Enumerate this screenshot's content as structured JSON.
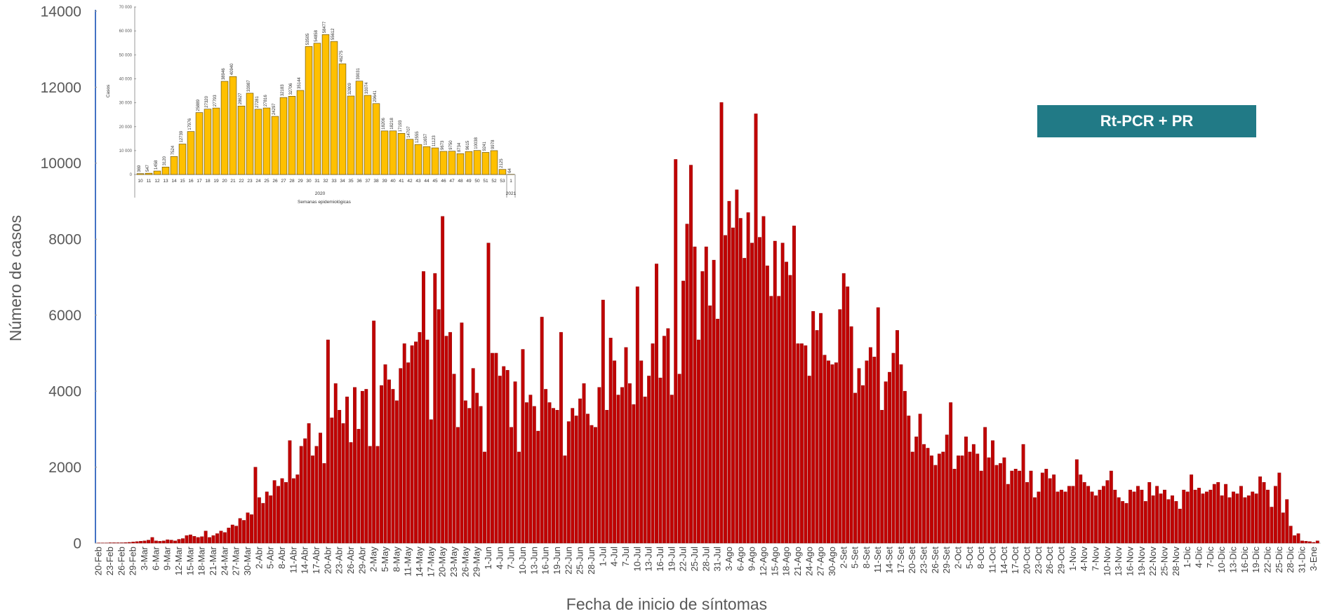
{
  "chart_data": [
    {
      "type": "bar",
      "x_label": "Fecha de inicio de síntomas",
      "y_label": "Número de casos",
      "ylim": [
        0,
        14000
      ],
      "yticks": [
        0,
        2000,
        4000,
        6000,
        8000,
        10000,
        12000,
        14000
      ],
      "grid": false,
      "legend": "top-right",
      "categories": [
        "20-Feb",
        null,
        null,
        "23-Feb",
        null,
        null,
        "26-Feb",
        null,
        null,
        "29-Feb",
        null,
        null,
        "3-Mar",
        null,
        null,
        "6-Mar",
        null,
        null,
        "9-Mar",
        null,
        null,
        "12-Mar",
        null,
        null,
        "15-Mar",
        null,
        null,
        "18-Mar",
        null,
        null,
        "21-Mar",
        null,
        null,
        "24-Mar",
        null,
        null,
        "27-Mar",
        null,
        null,
        "30-Mar",
        null,
        null,
        "2-Abr",
        null,
        null,
        "5-Abr",
        null,
        null,
        "8-Abr",
        null,
        null,
        "11-Abr",
        null,
        null,
        "14-Abr",
        null,
        null,
        "17-Abr",
        null,
        null,
        "20-Abr",
        null,
        null,
        "23-Abr",
        null,
        null,
        "26-Abr",
        null,
        null,
        "29-Abr",
        null,
        null,
        "2-May",
        null,
        null,
        "5-May",
        null,
        null,
        "8-May",
        null,
        null,
        "11-May",
        null,
        null,
        "14-May",
        null,
        null,
        "17-May",
        null,
        null,
        "20-May",
        null,
        null,
        "23-May",
        null,
        null,
        "26-May",
        null,
        null,
        "29-May",
        null,
        null,
        "1-Jun",
        null,
        null,
        "4-Jun",
        null,
        null,
        "7-Jun",
        null,
        null,
        "10-Jun",
        null,
        null,
        "13-Jun",
        null,
        null,
        "16-Jun",
        null,
        null,
        "19-Jun",
        null,
        null,
        "22-Jun",
        null,
        null,
        "25-Jun",
        null,
        null,
        "28-Jun",
        null,
        null,
        "1-Jul",
        null,
        null,
        "4-Jul",
        null,
        null,
        "7-Jul",
        null,
        null,
        "10-Jul",
        null,
        null,
        "13-Jul",
        null,
        null,
        "16-Jul",
        null,
        null,
        "19-Jul",
        null,
        null,
        "22-Jul",
        null,
        null,
        "25-Jul",
        null,
        null,
        "28-Jul",
        null,
        null,
        "31-Jul",
        null,
        null,
        "3-Ago",
        null,
        null,
        "6-Ago",
        null,
        null,
        "9-Ago",
        null,
        null,
        "12-Ago",
        null,
        null,
        "15-Ago",
        null,
        null,
        "18-Ago",
        null,
        null,
        "21-Ago",
        null,
        null,
        "24-Ago",
        null,
        null,
        "27-Ago",
        null,
        null,
        "30-Ago",
        null,
        null,
        "2-Set",
        null,
        null,
        "5-Set",
        null,
        null,
        "8-Set",
        null,
        null,
        "11-Set",
        null,
        null,
        "14-Set",
        null,
        null,
        "17-Set",
        null,
        null,
        "20-Set",
        null,
        null,
        "23-Set",
        null,
        null,
        "26-Set",
        null,
        null,
        "29-Set",
        null,
        null,
        "2-Oct",
        null,
        null,
        "5-Oct",
        null,
        null,
        "8-Oct",
        null,
        null,
        "11-Oct",
        null,
        null,
        "14-Oct",
        null,
        null,
        "17-Oct",
        null,
        null,
        "20-Oct",
        null,
        null,
        "23-Oct",
        null,
        null,
        "26-Oct",
        null,
        null,
        "29-Oct",
        null,
        null,
        "1-Nov",
        null,
        null,
        "4-Nov",
        null,
        null,
        "7-Nov",
        null,
        null,
        "10-Nov",
        null,
        null,
        "13-Nov",
        null,
        null,
        "16-Nov",
        null,
        null,
        "19-Nov",
        null,
        null,
        "22-Nov",
        null,
        null,
        "25-Nov",
        null,
        null,
        "28-Nov",
        null,
        null,
        "1-Dic",
        null,
        null,
        "4-Dic",
        null,
        null,
        "7-Dic",
        null,
        null,
        "10-Dic",
        null,
        null,
        "13-Dic",
        null,
        null,
        "16-Dic",
        null,
        null,
        "19-Dic",
        null,
        null,
        "22-Dic",
        null,
        null,
        "25-Dic",
        null,
        null,
        "28-Dic",
        null,
        null,
        "31-Dic",
        null,
        null,
        "3-Ene",
        null
      ],
      "series": [
        {
          "name": "Rt-PCR + PR",
          "color": "#c00000",
          "values": [
            5,
            5,
            5,
            10,
            10,
            10,
            10,
            15,
            20,
            30,
            40,
            50,
            60,
            80,
            150,
            60,
            50,
            60,
            90,
            80,
            60,
            100,
            120,
            200,
            220,
            180,
            150,
            170,
            320,
            150,
            200,
            250,
            320,
            280,
            400,
            480,
            450,
            650,
            600,
            800,
            750,
            2000,
            1200,
            1050,
            1350,
            1250,
            1650,
            1500,
            1700,
            1600,
            2700,
            1700,
            1800,
            2550,
            2750,
            3150,
            2300,
            2550,
            2900,
            2100,
            5350,
            3300,
            4200,
            3500,
            3150,
            3850,
            2650,
            4100,
            3000,
            4000,
            4050,
            2550,
            5850,
            2550,
            4150,
            4700,
            4300,
            4050,
            3750,
            4600,
            5250,
            4750,
            5200,
            5300,
            5550,
            7150,
            5350,
            3250,
            7100,
            6150,
            8600,
            5450,
            5550,
            4450,
            3050,
            5800,
            3750,
            3550,
            4600,
            3950,
            3600,
            2400,
            7900,
            5000,
            5000,
            4400,
            4650,
            4550,
            3050,
            4250,
            2400,
            5100,
            3700,
            3900,
            3600,
            2950,
            5950,
            4050,
            3700,
            3550,
            3500,
            5550,
            2300,
            3200,
            3550,
            3350,
            3800,
            4200,
            3400,
            3100,
            3050,
            4100,
            6400,
            3500,
            5400,
            4800,
            3900,
            4100,
            5150,
            4200,
            3650,
            6750,
            4800,
            3850,
            4400,
            5250,
            7350,
            4350,
            5450,
            5650,
            3900,
            10100,
            4450,
            6900,
            8400,
            9950,
            7800,
            5350,
            7150,
            7800,
            6250,
            7450,
            5900,
            11600,
            8100,
            9000,
            8300,
            9300,
            8550,
            7500,
            8700,
            7900,
            11300,
            8050,
            8600,
            7300,
            6500,
            7950,
            6500,
            7900,
            7400,
            7050,
            8350,
            5250,
            5250,
            5200,
            4400,
            6100,
            5600,
            6050,
            4950,
            4800,
            4700,
            4750,
            6150,
            7100,
            6750,
            5700,
            3950,
            4600,
            4150,
            4800,
            5150,
            4900,
            6200,
            3500,
            4250,
            4500,
            5000,
            5600,
            4700,
            4000,
            3350,
            2400,
            2800,
            3400,
            2600,
            2500,
            2300,
            2050,
            2350,
            2400,
            2850,
            3700,
            1950,
            2300,
            2300,
            2800,
            2400,
            2600,
            2350,
            1900,
            3050,
            2250,
            2700,
            2050,
            2100,
            2250,
            1550,
            1900,
            1950,
            1900,
            2600,
            1600,
            1900,
            1200,
            1350,
            1850,
            1950,
            1700,
            1800,
            1350,
            1400,
            1350,
            1500,
            1500,
            2200,
            1800,
            1600,
            1500,
            1350,
            1250,
            1400,
            1500,
            1650,
            1900,
            1400,
            1200,
            1100,
            1050,
            1400,
            1350,
            1500,
            1400,
            1100,
            1600,
            1250,
            1500,
            1300,
            1400,
            1150,
            1250,
            1100,
            900,
            1400,
            1350,
            1800,
            1400,
            1450,
            1300,
            1350,
            1400,
            1550,
            1600,
            1250,
            1550,
            1200,
            1350,
            1300,
            1500,
            1200,
            1250,
            1350,
            1300,
            1750,
            1600,
            1400,
            950,
            1500,
            1850,
            800,
            1150,
            450,
            200,
            250,
            60,
            50,
            40,
            20,
            60
          ]
        }
      ]
    },
    {
      "type": "bar",
      "x_label": "Semanas epidemiológicas",
      "y_label": "Casos",
      "year_labels": [
        "2020",
        "2021"
      ],
      "ylim": [
        0,
        70000
      ],
      "yticks": [
        0,
        {
          "value": 10000,
          "label": "10 000"
        },
        {
          "value": 20000,
          "label": "20 000"
        },
        {
          "value": 30000,
          "label": "30 000"
        },
        {
          "value": 40000,
          "label": "40 000"
        },
        {
          "value": 50000,
          "label": "50 000"
        },
        {
          "value": 60000,
          "label": "60 000"
        },
        {
          "value": 70000,
          "label": "70 000"
        }
      ],
      "categories": [
        "10",
        "11",
        "12",
        "13",
        "14",
        "15",
        "16",
        "17",
        "18",
        "19",
        "20",
        "21",
        "22",
        "23",
        "24",
        "25",
        "26",
        "27",
        "28",
        "29",
        "30",
        "31",
        "32",
        "33",
        "34",
        "35",
        "36",
        "37",
        "38",
        "39",
        "40",
        "41",
        "42",
        "43",
        "44",
        "45",
        "46",
        "47",
        "48",
        "49",
        "50",
        "51",
        "52",
        "53",
        "1"
      ],
      "color": "#ffc000",
      "values": [
        369,
        547,
        1458,
        3120,
        7524,
        12739,
        17976,
        25889,
        27320,
        27793,
        38946,
        40940,
        28627,
        33987,
        27281,
        27816,
        24297,
        32183,
        32706,
        35144,
        53505,
        54858,
        58477,
        55612,
        46275,
        32809,
        39031,
        33074,
        29641,
        18206,
        18218,
        17193,
        14707,
        12555,
        11657,
        11123,
        9673,
        9750,
        8734,
        9615,
        10038,
        9241,
        9978,
        2125,
        64
      ]
    }
  ]
}
